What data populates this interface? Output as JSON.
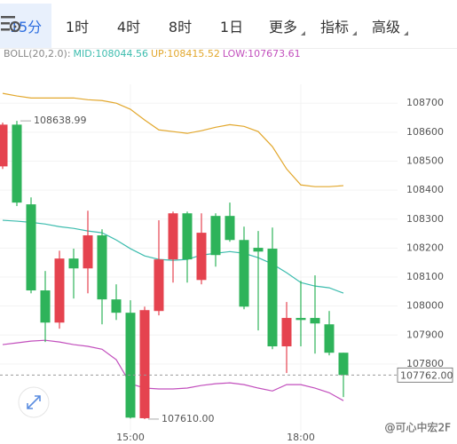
{
  "tabs": [
    "15分",
    "1时",
    "4时",
    "8时",
    "1日",
    "更多",
    "指标",
    "高级"
  ],
  "watermark": "@可心中宏2F",
  "chart_data": {
    "type": "candlestick",
    "indicator": "BOLL(20,2.0):",
    "categories": [
      null,
      null,
      null,
      null,
      null,
      null,
      null,
      null,
      null,
      "15:00",
      null,
      null,
      null,
      null,
      null,
      null,
      null,
      null,
      null,
      null,
      null,
      "18:00",
      null,
      null,
      null
    ],
    "open": [
      108482,
      108626,
      108351,
      108054,
      107943,
      108164,
      108130,
      108244,
      108023,
      107977,
      107613,
      107983,
      108161,
      108320,
      108090,
      108311,
      108311,
      108228,
      108201,
      108198,
      107861,
      107959,
      107959,
      107937,
      107839
    ],
    "high": [
      108633,
      108638.99,
      108375,
      108121,
      108191,
      108198,
      108329,
      108265,
      108075,
      108020,
      107998,
      108296,
      108326,
      108326,
      108320,
      108320,
      108357,
      108274,
      108259,
      108271,
      108014,
      108087,
      108106,
      107983,
      107839
    ],
    "low": [
      108473,
      108345,
      108044,
      107876,
      107922,
      108026,
      108044,
      107937,
      107952,
      107612,
      107610,
      107968,
      108081,
      108081,
      108075,
      108136,
      108222,
      107989,
      107916,
      107851,
      107769,
      107861,
      107836,
      107830,
      107686
    ],
    "close": [
      108626,
      108357,
      108054,
      107943,
      108164,
      108130,
      108244,
      108023,
      107977,
      107615,
      107986,
      108161,
      108320,
      108161,
      108253,
      108176,
      108228,
      107998,
      108188,
      107861,
      107959,
      107952,
      107940,
      107839,
      107762
    ],
    "up_color": "#e5434f",
    "down_color": "#2eb35a",
    "series": [
      {
        "name": "MID:108044.56",
        "color": "#3cbcae",
        "values": [
          108296,
          108293,
          108289,
          108283,
          108274,
          108268,
          108259,
          108253,
          108228,
          108198,
          108173,
          108161,
          108158,
          108161,
          108176,
          108182,
          108188,
          108182,
          108167,
          108145,
          108115,
          108081,
          108069,
          108063,
          108044.56
        ]
      },
      {
        "name": "UP:108415.52",
        "color": "#e2a72c",
        "values": [
          108734,
          108725,
          108718,
          108718,
          108718,
          108718,
          108712,
          108709,
          108700,
          108679,
          108642,
          108608,
          108602,
          108596,
          108605,
          108617,
          108626,
          108620,
          108602,
          108550,
          108473,
          108418,
          108412,
          108412,
          108415.52
        ]
      },
      {
        "name": "LOW:107673.61",
        "color": "#c24fbd",
        "values": [
          107867,
          107873,
          107879,
          107882,
          107876,
          107867,
          107861,
          107851,
          107815,
          107732,
          107717,
          107714,
          107714,
          107717,
          107726,
          107732,
          107735,
          107729,
          107717,
          107707,
          107729,
          107729,
          107717,
          107701,
          107673.61
        ]
      }
    ],
    "ylim": [
      107570,
      108765
    ],
    "yticks": [
      107800,
      107900,
      108000,
      108100,
      108200,
      108300,
      108400,
      108500,
      108600,
      108700
    ],
    "grid": true,
    "last_price": {
      "value": 107762,
      "label": "107762.00"
    },
    "annotations": [
      {
        "value": 108638.99,
        "label": "108638.99"
      },
      {
        "value": 107610,
        "label": "107610.00"
      }
    ]
  }
}
